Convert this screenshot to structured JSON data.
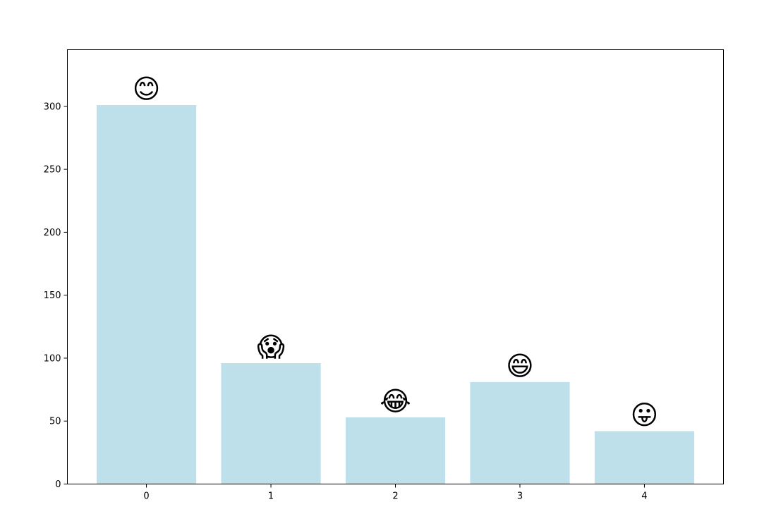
{
  "chart_data": {
    "type": "bar",
    "categories": [
      "0",
      "1",
      "2",
      "3",
      "4"
    ],
    "values": [
      301,
      96,
      53,
      81,
      42
    ],
    "ylim": [
      0,
      345
    ],
    "yticks": [
      0,
      50,
      100,
      150,
      200,
      250,
      300
    ],
    "xlim": [
      -0.635,
      4.635
    ],
    "bar_width": 0.8,
    "bar_color": "#add8e6",
    "bar_alpha": 0.8,
    "grid": false,
    "markers": [
      {
        "icon": "smiling-face-with-smiling-eyes-icon",
        "glyph": "😊"
      },
      {
        "icon": "face-screaming-in-fear-icon",
        "glyph": "😱"
      },
      {
        "icon": "face-with-tears-of-joy-icon",
        "glyph": "😂"
      },
      {
        "icon": "grinning-face-with-smiling-eyes-icon",
        "glyph": "😄"
      },
      {
        "icon": "face-with-tongue-icon",
        "glyph": "😛"
      }
    ]
  }
}
